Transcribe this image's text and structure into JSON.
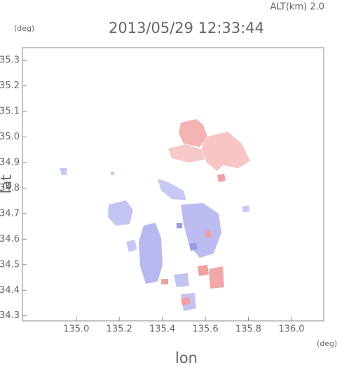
{
  "chart_data": {
    "type": "map",
    "title": "2013/05/29 12:33:44",
    "subtitle": "ALT(km) 2.0",
    "x_label": "lon",
    "x_unit": "(deg)",
    "y_label": "lat",
    "y_unit": "(deg)",
    "xlim": [
      134.75,
      136.15
    ],
    "xticks": [
      {
        "value": 135,
        "label": "135.0"
      },
      135.2,
      135.4,
      135.6,
      135.8,
      {
        "value": 136,
        "label": "136.0"
      }
    ],
    "ylim": [
      34.28,
      35.35
    ],
    "yticks": [
      34.3,
      34.4,
      34.5,
      34.6,
      34.7,
      34.8,
      34.9,
      {
        "value": 35,
        "label": "35.0"
      },
      35.1,
      35.2,
      35.3
    ]
  }
}
